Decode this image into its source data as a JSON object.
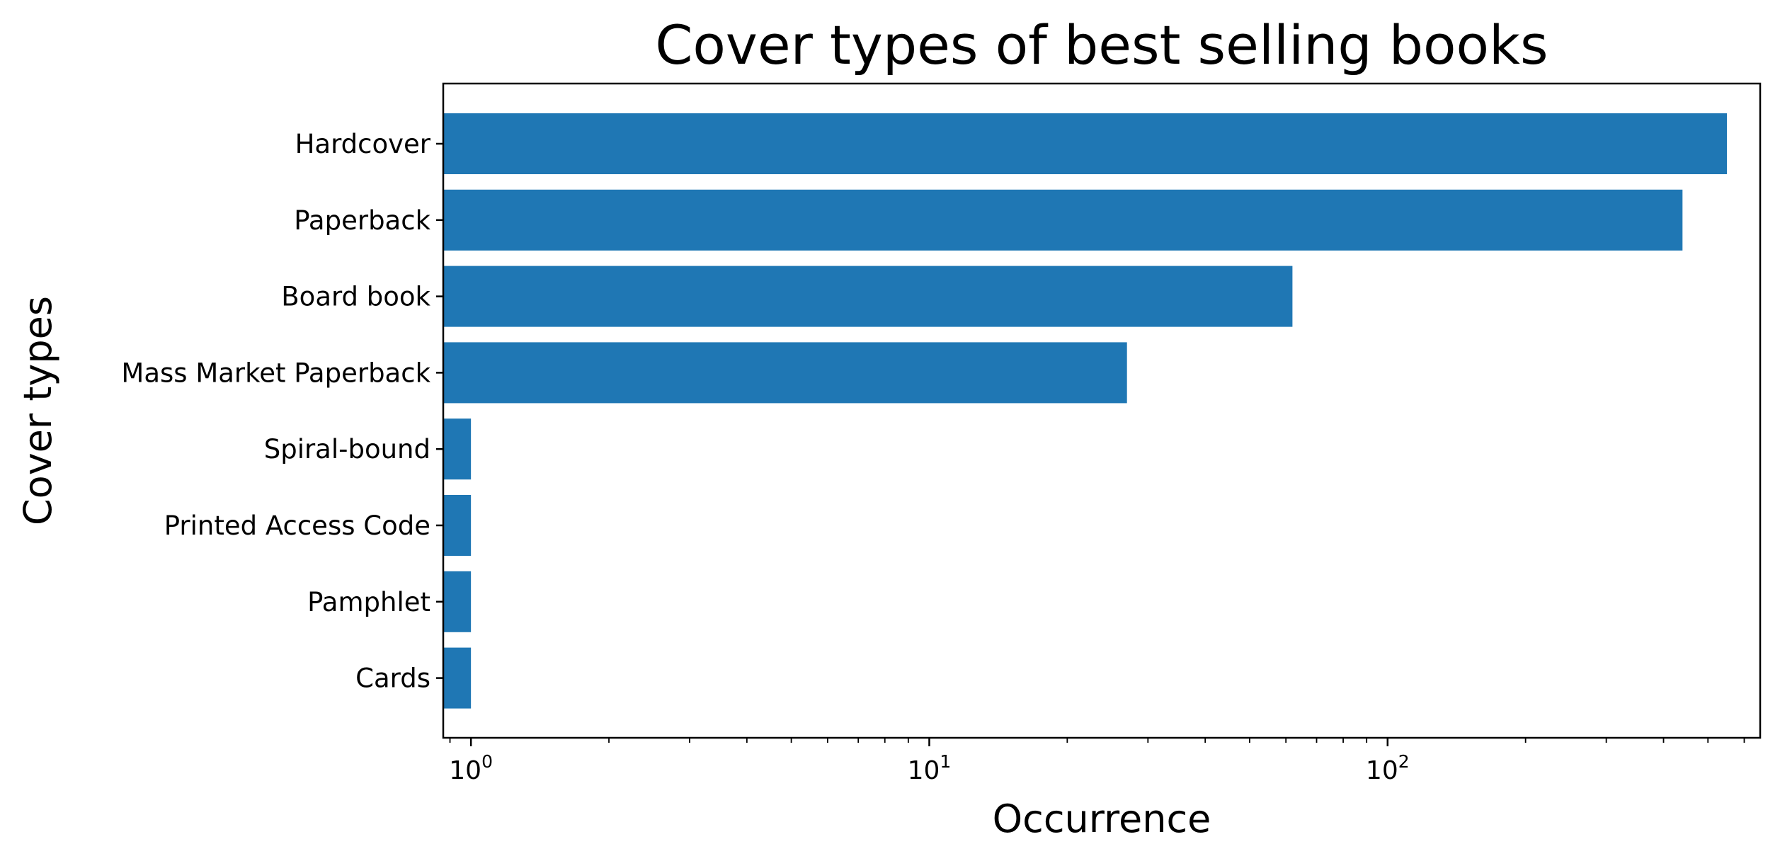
{
  "chart_data": {
    "type": "bar",
    "orientation": "horizontal",
    "title": "Cover types of best selling books",
    "xlabel": "Occurrence",
    "ylabel": "Cover types",
    "x_scale": "log",
    "xlim": [
      0.87,
      650
    ],
    "x_ticks": [
      {
        "base": "10",
        "exp": "0",
        "value": 1
      },
      {
        "base": "10",
        "exp": "1",
        "value": 10
      },
      {
        "base": "10",
        "exp": "2",
        "value": 100
      }
    ],
    "categories": [
      "Hardcover",
      "Paperback",
      "Board book",
      "Mass Market Paperback",
      "Spiral-bound",
      "Printed Access Code",
      "Pamphlet",
      "Cards"
    ],
    "values": [
      550,
      440,
      62,
      27,
      1,
      1,
      1,
      1
    ],
    "bar_color": "#1f77b4",
    "grid": false,
    "legend": "none"
  }
}
